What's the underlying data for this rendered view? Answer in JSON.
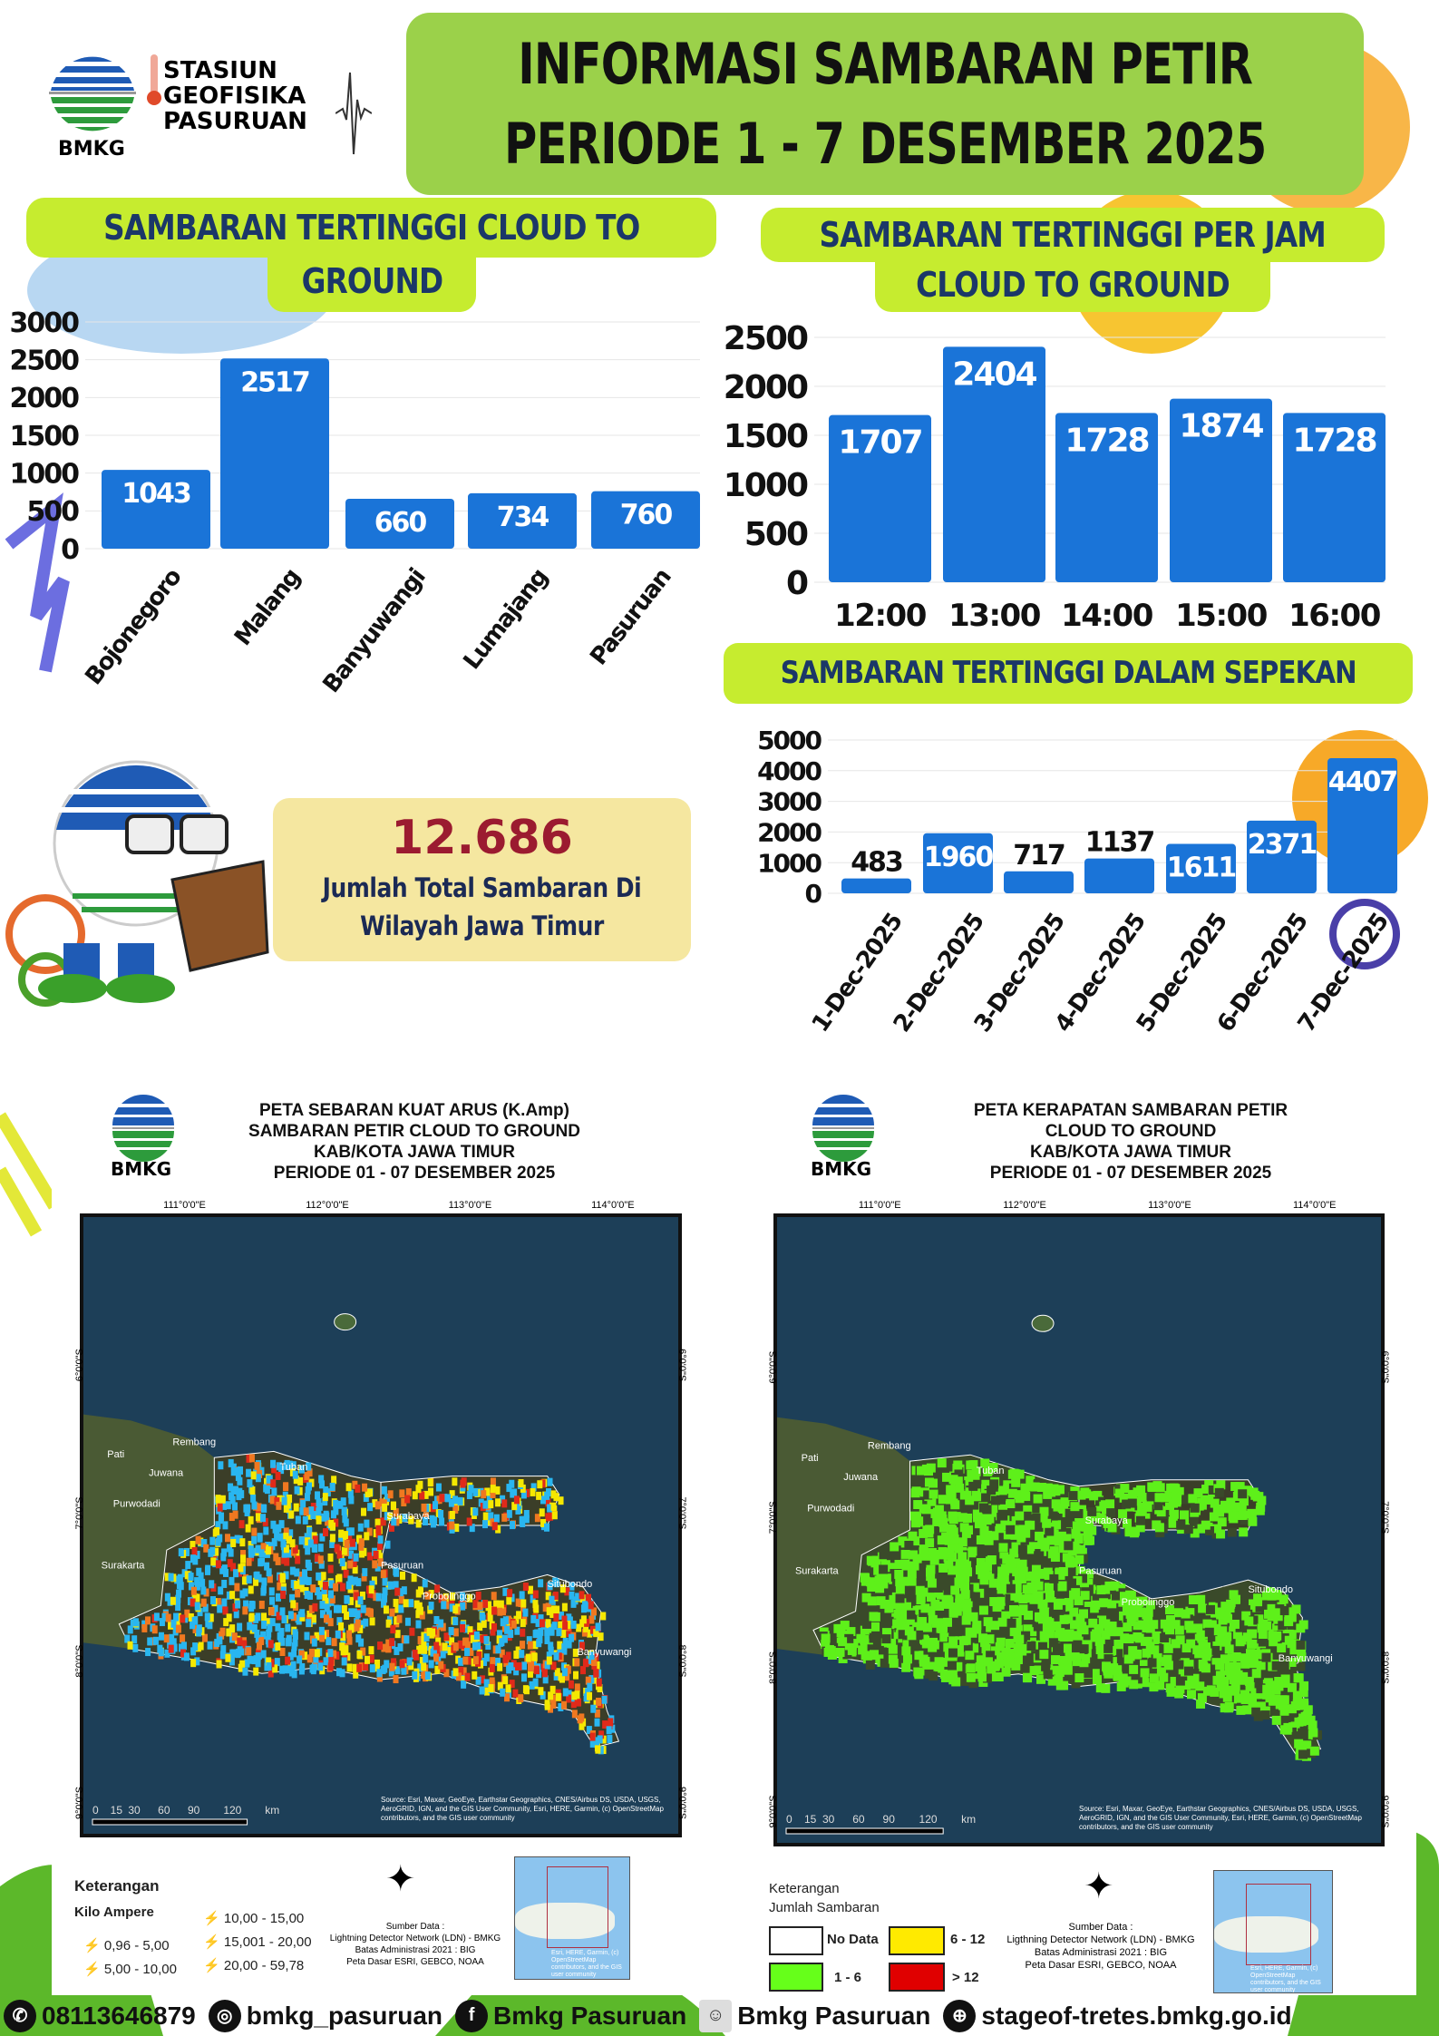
{
  "logo": {
    "brand": "BMKG",
    "station_lines": [
      "STASIUN",
      "GEOFISIKA",
      "PASURUAN"
    ]
  },
  "title": {
    "line1": "INFORMASI SAMBARAN PETIR",
    "line2": "PERIODE 1 - 7 DESEMBER 2025"
  },
  "headers": {
    "by_region_line1": "SAMBARAN TERTINGGI  CLOUD TO",
    "by_region_line2": "GROUND",
    "per_hour_line1": "SAMBARAN TERTINGGI PER JAM",
    "per_hour_line2": "CLOUD TO GROUND",
    "per_week": "SAMBARAN TERTINGGI DALAM SEPEKAN"
  },
  "total": {
    "value": "12.686",
    "label_line1": "Jumlah Total Sambaran Di",
    "label_line2": "Wilayah Jawa Timur"
  },
  "colors": {
    "bar": "#1a74d8",
    "title_bg": "#9bd14a",
    "header_bg": "#c6ec2f",
    "header_text": "#1b3768",
    "total_value": "#9b1b30"
  },
  "chart_data": [
    {
      "type": "bar",
      "categories": [
        "Bojonegoro",
        "Malang",
        "Banyuwangi",
        "Lumajang",
        "Pasuruan"
      ],
      "values": [
        1043,
        2517,
        660,
        734,
        760
      ],
      "yticks": [
        "0",
        "500",
        "1000",
        "1500",
        "2000",
        "2500",
        "3000"
      ],
      "ylim": [
        0,
        3000
      ]
    },
    {
      "type": "bar",
      "categories": [
        "12:00",
        "13:00",
        "14:00",
        "15:00",
        "16:00"
      ],
      "values": [
        1707,
        2404,
        1728,
        1874,
        1728
      ],
      "yticks": [
        "0",
        "500",
        "1000",
        "1500",
        "2000",
        "2500"
      ],
      "ylim": [
        0,
        2500
      ]
    },
    {
      "type": "bar",
      "categories": [
        "1-Dec-2025",
        "2-Dec-2025",
        "3-Dec-2025",
        "4-Dec-2025",
        "5-Dec-2025",
        "6-Dec-2025",
        "7-Dec-2025"
      ],
      "values": [
        483,
        1960,
        717,
        1137,
        1611,
        2371,
        4407
      ],
      "yticks": [
        "0",
        "1000",
        "2000",
        "3000",
        "4000",
        "5000"
      ],
      "ylim": [
        0,
        5000
      ]
    }
  ],
  "maps": [
    {
      "title_lines": [
        "PETA SEBARAN KUAT ARUS (K.Amp)",
        "SAMBARAN PETIR CLOUD TO GROUND",
        "KAB/KOTA JAWA TIMUR",
        "PERIODE 01 - 07 DESEMBER 2025"
      ],
      "legend_title": "Keterangan",
      "legend_subtitle": "Kilo Ampere",
      "legend_items": [
        {
          "label": "0,96 - 5,00",
          "color": "#29b6f0"
        },
        {
          "label": "5,00 - 10,00",
          "color": "#f5e800"
        },
        {
          "label": "10,00 - 15,00",
          "color": "#f07820"
        },
        {
          "label": "15,001 - 20,00",
          "color": "#e02a1a"
        },
        {
          "label": "20,00 - 59,78",
          "color": "#a81010"
        }
      ],
      "source_lines": [
        "Sumber Data :",
        "Lightning Detector Network (LDN) - BMKG",
        "Batas Administrasi 2021  : BIG",
        "Peta Dasar ESRI, GEBCO, NOAA"
      ]
    },
    {
      "title_lines": [
        "PETA KERAPATAN SAMBARAN PETIR",
        "CLOUD TO GROUND",
        "KAB/KOTA JAWA TIMUR",
        "PERIODE 01 - 07 DESEMBER  2025"
      ],
      "legend_title": "Keterangan",
      "legend_subtitle": "Jumlah Sambaran",
      "legend_items": [
        {
          "label": "No Data",
          "color": "#ffffff"
        },
        {
          "label": "6 - 12",
          "color": "#ffea00"
        },
        {
          "label": "1 - 6",
          "color": "#66ff1a"
        },
        {
          "label": "> 12",
          "color": "#e00000"
        }
      ],
      "source_lines": [
        "Sumber Data :",
        "Ligthning Detector Network (LDN) - BMKG",
        "Batas Administrasi 2021  : BIG",
        "Peta Dasar ESRI, GEBCO, NOAA"
      ]
    }
  ],
  "map_common": {
    "lon_labels": [
      "111°0'0\"E",
      "112°0'0\"E",
      "113°0'0\"E",
      "114°0'0\"E"
    ],
    "lat_labels": [
      "6°0'0\"S",
      "7°0'0\"S",
      "8°0'0\"S",
      "9°0'0\"S"
    ],
    "scale_labels": [
      "0",
      "15",
      "30",
      "60",
      "90",
      "120",
      "km"
    ],
    "attribution": "Source: Esri, Maxar, GeoEye, Earthstar Geographics, CNES/Airbus DS, USDA, USGS, AeroGRID, IGN, and the GIS User Community, Esri, HERE, Garmin, (c) OpenStreetMap contributors, and the GIS user community",
    "place_labels": [
      "Pati",
      "Juwana",
      "Rembang",
      "Purwodadi",
      "Surakarta",
      "Tuban",
      "Pasuruan",
      "Probolinggo",
      "Situbondo",
      "Banyuwangi",
      "Surabaya"
    ],
    "inset_attribution": "Esri, HERE, Garmin, (c) OpenStreetMap contributors, and the GIS user community"
  },
  "footer": {
    "whatsapp": "08113646879",
    "instagram": "bmkg_pasuruan",
    "facebook": "Bmkg Pasuruan",
    "other": "Bmkg Pasuruan",
    "website": "stageof-tretes.bmkg.go.id"
  }
}
